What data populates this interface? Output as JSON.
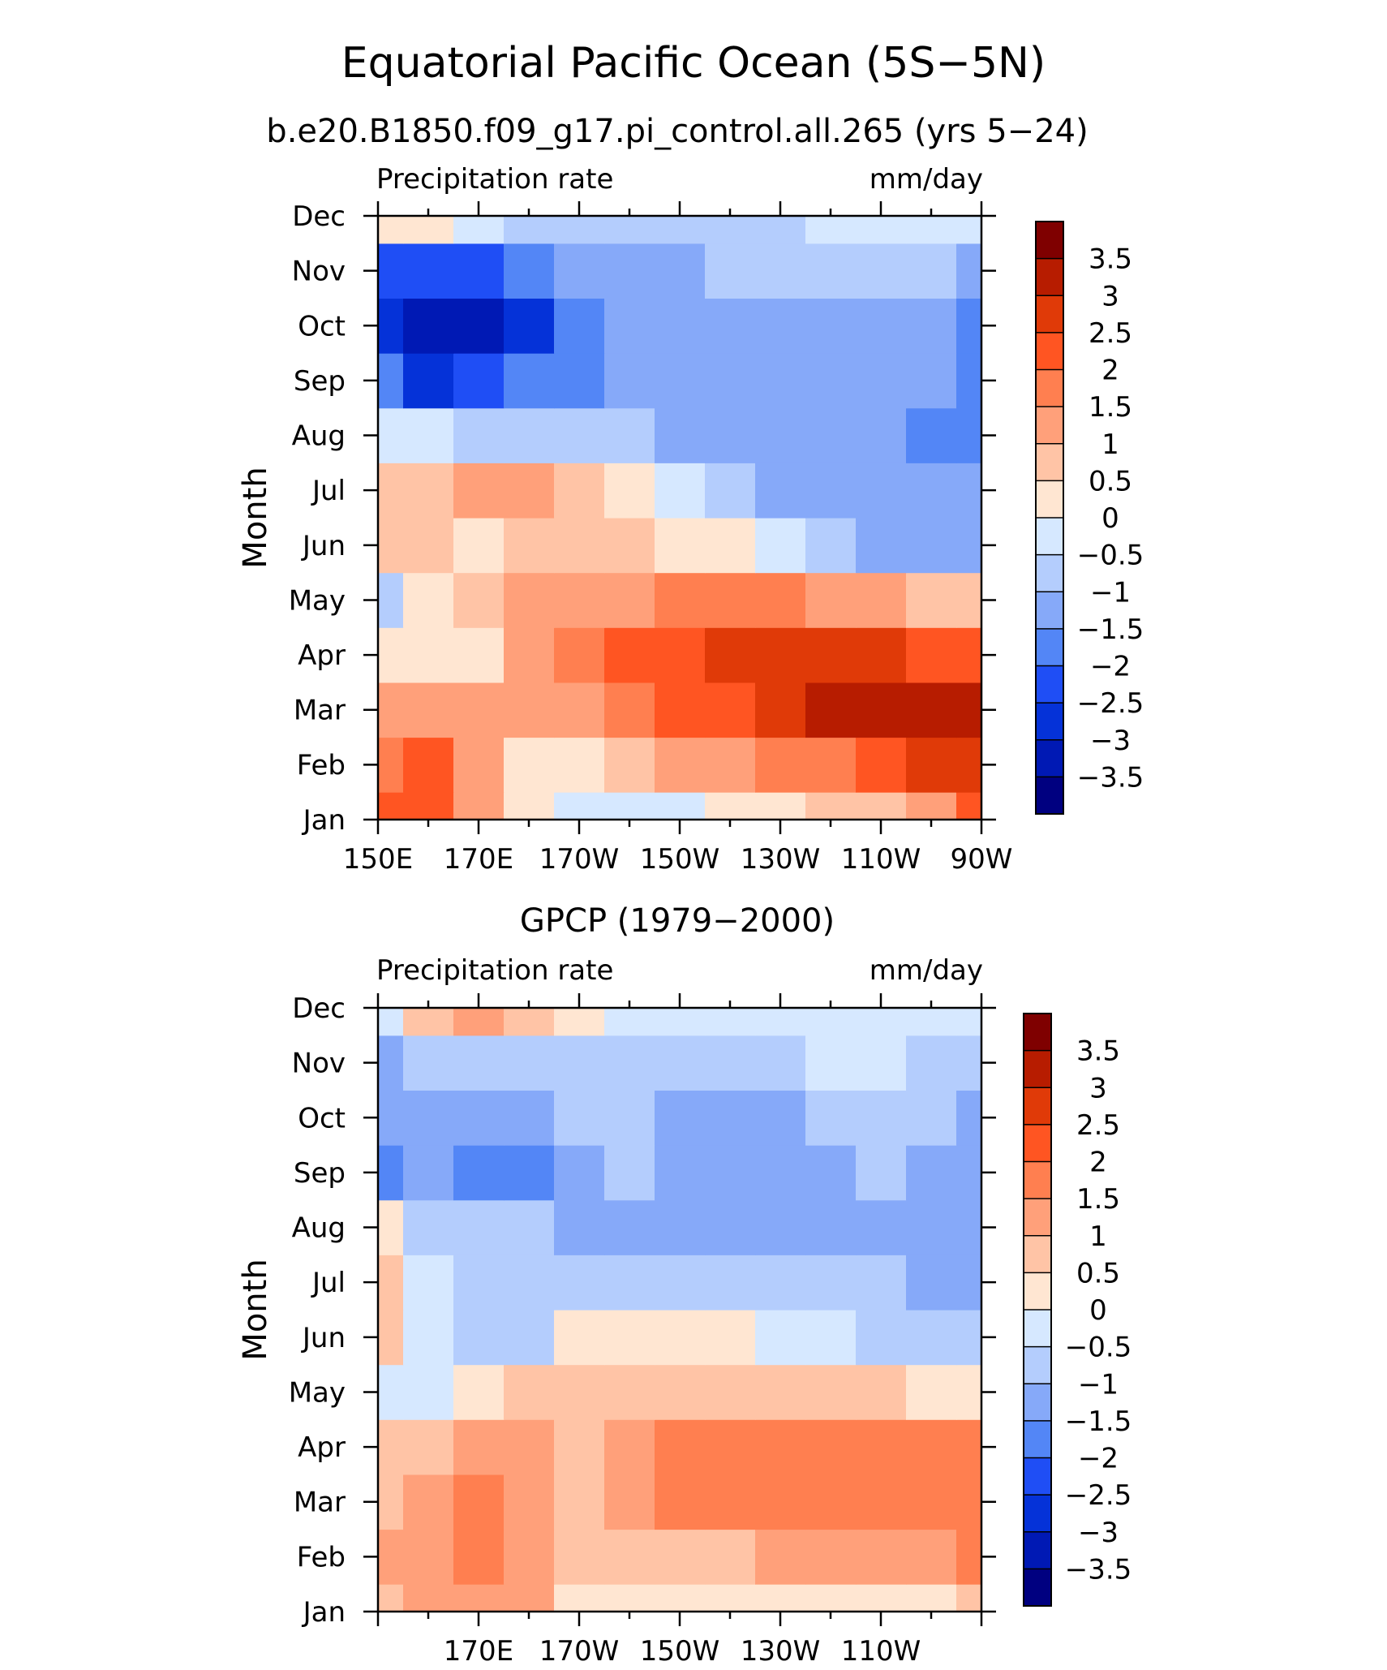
{
  "figure": {
    "main_title": "Equatorial Pacific Ocean (5S−5N)",
    "run_title": "b.e20.B1850.f09_g17.pi_control.all.265 (yrs 5−24)",
    "obs_title": "GPCP (1979−2000)"
  },
  "chart_data": [
    {
      "type": "heatmap",
      "title": "b.e20.B1850.f09_g17.pi_control.all.265 (yrs 5−24)",
      "left_label": "Precipitation rate",
      "right_label": "mm/day",
      "ylabel": "Month",
      "xlabel": "",
      "x_ticklabels": [
        "150E",
        "170E",
        "170W",
        "150W",
        "130W",
        "110W",
        "90W"
      ],
      "y_ticklabels": [
        "Jan",
        "Feb",
        "Mar",
        "Apr",
        "May",
        "Jun",
        "Jul",
        "Aug",
        "Sep",
        "Oct",
        "Nov",
        "Dec"
      ],
      "x_lon": [
        150,
        160,
        170,
        180,
        190,
        200,
        210,
        220,
        230,
        240,
        250,
        260,
        270
      ],
      "months": [
        "Jan",
        "Feb",
        "Mar",
        "Apr",
        "May",
        "Jun",
        "Jul",
        "Aug",
        "Sep",
        "Oct",
        "Nov",
        "Dec"
      ],
      "xlim": [
        150,
        270
      ],
      "ylim": [
        "Jan",
        "Dec"
      ],
      "values": [
        [
          2.2,
          2.3,
          1.2,
          0.2,
          -0.2,
          -0.3,
          -0.2,
          0.1,
          0.4,
          0.7,
          0.9,
          1.4,
          2.1
        ],
        [
          1.5,
          2.0,
          1.3,
          0.4,
          0.3,
          0.6,
          1.0,
          1.3,
          1.6,
          1.9,
          2.2,
          2.5,
          2.6
        ],
        [
          1.0,
          1.4,
          1.2,
          1.0,
          1.3,
          1.7,
          2.0,
          2.3,
          2.6,
          3.0,
          3.1,
          3.0,
          3.0
        ],
        [
          0.3,
          0.4,
          0.3,
          1.0,
          1.5,
          2.0,
          2.2,
          2.5,
          2.6,
          2.6,
          2.6,
          2.4,
          2.4
        ],
        [
          -0.6,
          0.2,
          0.6,
          1.2,
          1.3,
          1.4,
          1.5,
          1.6,
          1.5,
          1.3,
          1.1,
          0.8,
          0.6
        ],
        [
          0.7,
          0.5,
          0.4,
          0.7,
          0.8,
          0.6,
          0.3,
          0.0,
          -0.3,
          -0.8,
          -1.1,
          -1.3,
          -1.2
        ],
        [
          0.7,
          0.9,
          1.1,
          1.3,
          0.6,
          0.1,
          -0.4,
          -0.8,
          -1.1,
          -1.3,
          -1.3,
          -1.4,
          -1.5
        ],
        [
          -0.3,
          -0.4,
          -0.8,
          -0.7,
          -0.8,
          -0.9,
          -1.1,
          -1.3,
          -1.4,
          -1.5,
          -1.5,
          -1.6,
          -2.0
        ],
        [
          -1.6,
          -2.6,
          -2.4,
          -2.0,
          -1.6,
          -1.4,
          -1.3,
          -1.3,
          -1.3,
          -1.3,
          -1.3,
          -1.4,
          -1.6
        ],
        [
          -2.6,
          -3.5,
          -3.3,
          -2.6,
          -1.8,
          -1.3,
          -1.2,
          -1.2,
          -1.2,
          -1.2,
          -1.2,
          -1.3,
          -1.6
        ],
        [
          -2.3,
          -2.3,
          -2.1,
          -1.8,
          -1.4,
          -1.2,
          -1.1,
          -1.0,
          -1.0,
          -0.9,
          -0.9,
          -1.0,
          -1.1
        ],
        [
          0.2,
          0.3,
          -0.4,
          -0.7,
          -0.8,
          -0.8,
          -0.7,
          -0.6,
          -0.6,
          -0.5,
          -0.5,
          -0.5,
          -0.5
        ]
      ]
    },
    {
      "type": "heatmap",
      "title": "GPCP (1979−2000)",
      "left_label": "Precipitation rate",
      "right_label": "mm/day",
      "ylabel": "Month",
      "xlabel": "",
      "x_ticklabels": [
        "170E",
        "170W",
        "150W",
        "130W",
        "110W"
      ],
      "y_ticklabels": [
        "Jan",
        "Feb",
        "Mar",
        "Apr",
        "May",
        "Jun",
        "Jul",
        "Aug",
        "Sep",
        "Oct",
        "Nov",
        "Dec"
      ],
      "x_lon": [
        150,
        160,
        170,
        180,
        190,
        200,
        210,
        220,
        230,
        240,
        250,
        260,
        270
      ],
      "months": [
        "Jan",
        "Feb",
        "Mar",
        "Apr",
        "May",
        "Jun",
        "Jul",
        "Aug",
        "Sep",
        "Oct",
        "Nov",
        "Dec"
      ],
      "xlim": [
        150,
        270
      ],
      "ylim": [
        "Jan",
        "Dec"
      ],
      "values": [
        [
          0.6,
          1.0,
          1.3,
          1.4,
          0.4,
          0.3,
          0.3,
          0.2,
          0.2,
          0.1,
          0.2,
          0.4,
          0.6
        ],
        [
          1.1,
          1.4,
          1.6,
          1.4,
          0.5,
          0.6,
          0.8,
          0.9,
          1.0,
          1.1,
          1.2,
          1.3,
          1.5
        ],
        [
          0.8,
          1.2,
          1.5,
          1.3,
          0.8,
          1.1,
          1.6,
          1.7,
          1.9,
          1.7,
          1.8,
          1.9,
          1.7
        ],
        [
          0.5,
          0.8,
          1.2,
          1.0,
          0.7,
          1.1,
          1.5,
          1.6,
          1.8,
          1.7,
          1.5,
          1.8,
          1.6
        ],
        [
          -0.3,
          -0.4,
          0.1,
          0.5,
          0.6,
          0.8,
          0.9,
          0.9,
          0.9,
          0.8,
          0.6,
          0.4,
          0.1
        ],
        [
          0.6,
          -0.4,
          -0.8,
          -0.9,
          0.1,
          0.4,
          0.2,
          0.0,
          -0.2,
          -0.5,
          -0.7,
          -0.8,
          -0.8
        ],
        [
          0.6,
          -0.3,
          -0.8,
          -1.0,
          -0.8,
          -0.6,
          -0.7,
          -0.8,
          -0.9,
          -0.9,
          -0.9,
          -1.1,
          -1.4
        ],
        [
          0.1,
          -0.6,
          -0.8,
          -1.0,
          -1.1,
          -1.1,
          -1.2,
          -1.3,
          -1.3,
          -1.2,
          -1.1,
          -1.1,
          -1.4
        ],
        [
          -1.6,
          -1.4,
          -2.0,
          -1.9,
          -1.1,
          -1.0,
          -1.4,
          -1.5,
          -1.4,
          -1.3,
          -1.0,
          -1.1,
          -1.5
        ],
        [
          -1.3,
          -1.1,
          -1.3,
          -1.5,
          -0.9,
          -0.9,
          -1.2,
          -1.4,
          -1.2,
          -0.9,
          -0.8,
          -1.0,
          -1.2
        ],
        [
          -1.1,
          -0.9,
          -0.8,
          -0.8,
          -0.7,
          -0.6,
          -0.7,
          -0.7,
          -0.6,
          -0.5,
          -0.5,
          -0.6,
          -0.7
        ],
        [
          -0.5,
          0.6,
          1.3,
          0.8,
          0.3,
          -0.2,
          -0.4,
          -0.3,
          -0.3,
          -0.3,
          -0.3,
          -0.3,
          -0.3
        ]
      ]
    }
  ],
  "colorbar": {
    "labels": [
      "3.5",
      "3",
      "2.5",
      "2",
      "1.5",
      "1",
      "0.5",
      "0",
      "−0.5",
      "−1",
      "−1.5",
      "−2",
      "−2.5",
      "−3",
      "−3.5"
    ],
    "levels": [
      3.5,
      3,
      2.5,
      2,
      1.5,
      1,
      0.5,
      0,
      -0.5,
      -1,
      -1.5,
      -2,
      -2.5,
      -3,
      -3.5
    ],
    "colors_top_to_bottom": [
      "#7f0000",
      "#b71c00",
      "#e03a08",
      "#ff5522",
      "#ff7f50",
      "#ffa07a",
      "#ffc4a6",
      "#ffe6d2",
      "#d6e8ff",
      "#b4cdfd",
      "#86a9f9",
      "#5386f6",
      "#1f4ef5",
      "#0532d8",
      "#0019b4",
      "#000080"
    ]
  }
}
